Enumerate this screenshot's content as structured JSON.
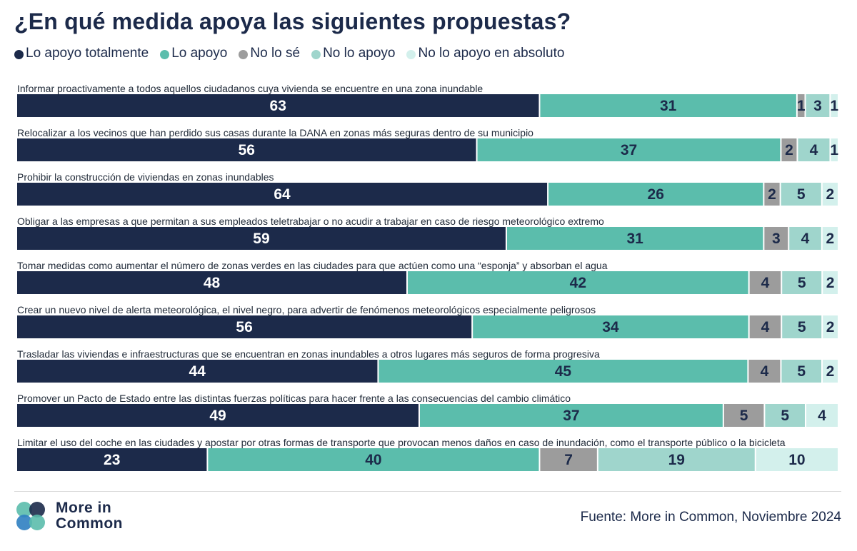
{
  "header": {
    "title": "¿En qué medida apoya las siguientes propuestas?"
  },
  "chart_data": {
    "type": "bar",
    "orientation": "horizontal-stacked-100",
    "title": "¿En qué medida apoya las siguientes propuestas?",
    "xlabel": "",
    "ylabel": "",
    "xlim": [
      0,
      100
    ],
    "series": [
      {
        "name": "Lo apoyo totalmente",
        "color": "#1c2a4a",
        "text_color": "#ffffff",
        "values": [
          63,
          56,
          64,
          59,
          48,
          56,
          44,
          49,
          23
        ]
      },
      {
        "name": "Lo apoyo",
        "color": "#5bbdac",
        "text_color": "#1c2a4a",
        "values": [
          31,
          37,
          26,
          31,
          42,
          34,
          45,
          37,
          40
        ]
      },
      {
        "name": "No lo sé",
        "color": "#9c9c9c",
        "text_color": "#1c2a4a",
        "values": [
          1,
          2,
          2,
          3,
          4,
          4,
          4,
          5,
          7
        ]
      },
      {
        "name": "No lo apoyo",
        "color": "#9fd5cc",
        "text_color": "#1c2a4a",
        "values": [
          3,
          4,
          5,
          4,
          5,
          5,
          5,
          5,
          19
        ]
      },
      {
        "name": "No lo apoyo en absoluto",
        "color": "#d3f0ec",
        "text_color": "#1c2a4a",
        "values": [
          1,
          1,
          2,
          2,
          2,
          2,
          2,
          4,
          10
        ]
      }
    ],
    "categories": [
      "Informar proactivamente a todos aquellos ciudadanos cuya vivienda se encuentre en una zona inundable",
      "Relocalizar a los vecinos que han perdido sus casas durante la DANA en zonas más seguras dentro de su municipio",
      "Prohibir la construcción de viviendas en zonas inundables",
      "Obligar a las empresas a que permitan a sus empleados teletrabajar o no acudir a trabajar en caso de riesgo meteorológico extremo",
      "Tomar medidas como aumentar el número de zonas verdes en las ciudades para que actúen como una “esponja” y absorban el agua",
      "Crear un nuevo nivel de alerta meteorológica, el nivel negro, para advertir de fenómenos meteorológicos especialmente peligrosos",
      "Trasladar las viviendas e infraestructuras que se encuentran en zonas inundables a otros lugares más seguros de forma progresiva",
      "Promover un Pacto de Estado entre las distintas fuerzas políticas para hacer frente a las consecuencias del cambio climático",
      "Limitar el uso del coche en las ciudades y apostar por otras formas de transporte que provocan menos daños en caso de inundación, como el transporte público o la bicicleta"
    ],
    "legend_position": "top-left",
    "grid": false
  },
  "footer": {
    "logo_line1": "More in",
    "logo_line2": "Common",
    "source": "Fuente: More in Common, Noviembre 2024"
  }
}
